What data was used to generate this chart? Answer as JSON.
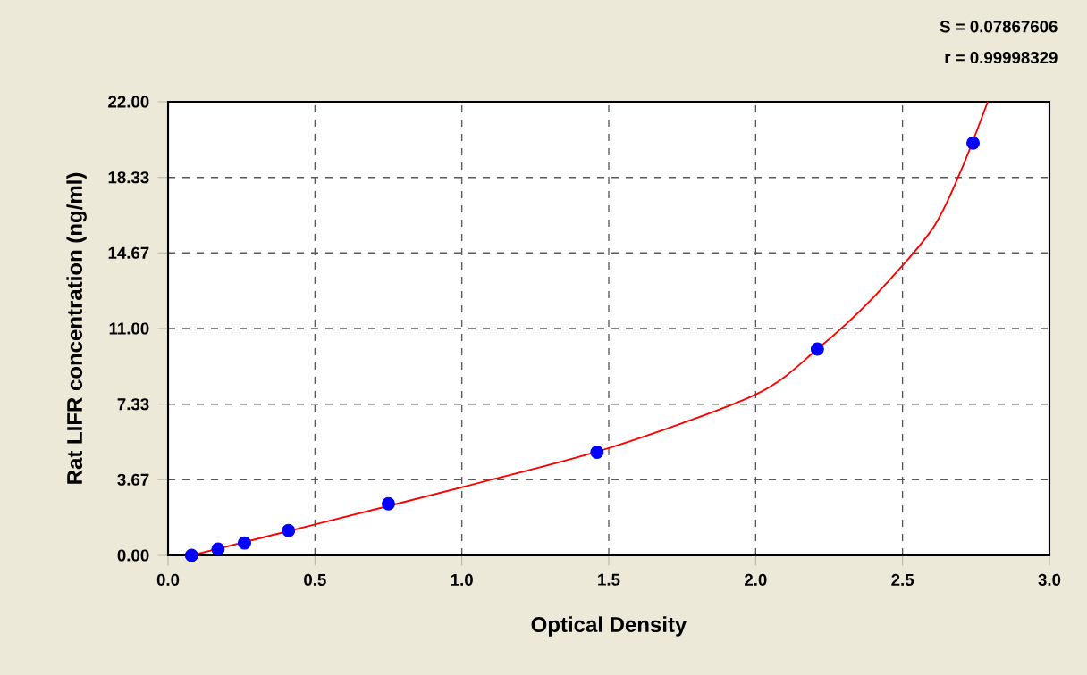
{
  "chart_data": {
    "type": "scatter",
    "xlabel": "Optical Density",
    "ylabel": "Rat LIFR concentration (ng/ml)",
    "annotations": [
      "S = 0.07867606",
      "r = 0.99998329"
    ],
    "xlim": [
      0,
      3
    ],
    "ylim": [
      0,
      22
    ],
    "xticks": [
      {
        "value": 0,
        "label": "0.0"
      },
      {
        "value": 0.5,
        "label": "0.5"
      },
      {
        "value": 1,
        "label": "1.0"
      },
      {
        "value": 1.5,
        "label": "1.5"
      },
      {
        "value": 2,
        "label": "2.0"
      },
      {
        "value": 2.5,
        "label": "2.5"
      },
      {
        "value": 3,
        "label": "3.0"
      }
    ],
    "yticks": [
      {
        "value": 0,
        "label": "0.00"
      },
      {
        "value": 3.67,
        "label": "3.67"
      },
      {
        "value": 7.33,
        "label": "7.33"
      },
      {
        "value": 11,
        "label": "11.00"
      },
      {
        "value": 14.67,
        "label": "14.67"
      },
      {
        "value": 18.33,
        "label": "18.33"
      },
      {
        "value": 22,
        "label": "22.00"
      }
    ],
    "grid": true,
    "marker": "circle",
    "series": [
      {
        "color": "#0000ff",
        "x": [
          0.08,
          0.17,
          0.26,
          0.41,
          0.75,
          1.46,
          2.21,
          2.74
        ],
        "values": [
          0,
          0.3,
          0.6,
          1.2,
          2.5,
          5,
          10,
          20
        ]
      },
      {
        "type": "line",
        "marker": "none",
        "color": "#ff0000",
        "x": [
          0.08,
          0.5,
          1.0,
          1.5,
          2.0,
          2.21,
          2.4,
          2.6,
          2.7,
          2.79
        ],
        "values": [
          0,
          1.5,
          3.3,
          5.2,
          7.8,
          10,
          12.5,
          15.8,
          18.7,
          22
        ]
      }
    ]
  }
}
